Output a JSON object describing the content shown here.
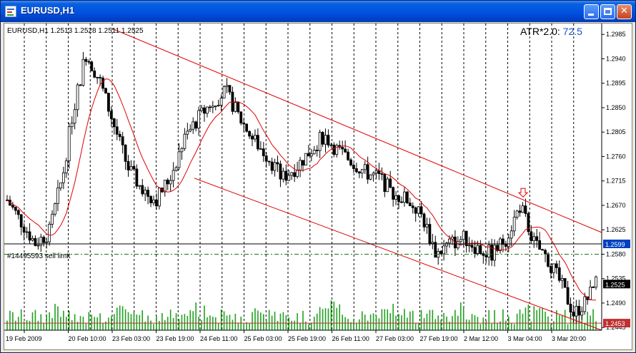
{
  "window": {
    "title": "EURUSD,H1"
  },
  "chart": {
    "header": "EURUSD,H1  1.2513 1.2528 1.2511 1.2525",
    "indicator_label": "ATR*2.0: ",
    "indicator_value": "72.5",
    "order_label": "#14495593 sell limit",
    "price_axis": [
      "1.2985",
      "1.2940",
      "1.2895",
      "1.2850",
      "1.2805",
      "1.2760",
      "1.2715",
      "1.2670",
      "1.2625",
      "1.2580",
      "1.2535",
      "1.2490",
      "1.2445"
    ],
    "time_axis": [
      "19 Feb 2009",
      "20 Feb 10:00",
      "23 Feb 03:00",
      "23 Feb 19:00",
      "24 Feb 11:00",
      "25 Feb 03:00",
      "25 Feb 19:00",
      "26 Feb 11:00",
      "27 Feb 03:00",
      "27 Feb 19:00",
      "2 Mar 12:00",
      "3 Mar 04:00",
      "3 Mar 20:00"
    ],
    "price_tags": {
      "order_line": "1.2599",
      "current_price": "1.2525",
      "low_line": "1.2453"
    },
    "colors": {
      "bull": "#000000",
      "bear": "#000000",
      "ma": "#e00000",
      "channel": "#e00000",
      "volume": "#20a020",
      "order_line": "#000000",
      "tp_line": "#207020",
      "grid": "#000000",
      "low_tag": "#c03030",
      "current_tag": "#000000",
      "order_tag": "#0040c0",
      "indicator_value": "#1a50d0"
    }
  },
  "chart_data": {
    "type": "candlestick",
    "symbol": "EURUSD",
    "timeframe": "H1",
    "ohlc_last": {
      "open": 1.2513,
      "high": 1.2528,
      "low": 1.2511,
      "close": 1.2525
    },
    "ylim": [
      1.244,
      1.3005
    ],
    "x_tick_labels": [
      "19 Feb 2009",
      "20 Feb 10:00",
      "23 Feb 03:00",
      "23 Feb 19:00",
      "24 Feb 11:00",
      "25 Feb 03:00",
      "25 Feb 19:00",
      "26 Feb 11:00",
      "27 Feb 03:00",
      "27 Feb 19:00",
      "2 Mar 12:00",
      "3 Mar 04:00",
      "3 Mar 20:00"
    ],
    "price_trend": [
      [
        0,
        1.268
      ],
      [
        10,
        1.264
      ],
      [
        20,
        1.26
      ],
      [
        30,
        1.262
      ],
      [
        40,
        1.273
      ],
      [
        46,
        1.283
      ],
      [
        56,
        1.295
      ],
      [
        66,
        1.29
      ],
      [
        76,
        1.282
      ],
      [
        86,
        1.274
      ],
      [
        96,
        1.27
      ],
      [
        106,
        1.268
      ],
      [
        116,
        1.272
      ],
      [
        126,
        1.279
      ],
      [
        136,
        1.283
      ],
      [
        146,
        1.286
      ],
      [
        156,
        1.288
      ],
      [
        166,
        1.283
      ],
      [
        176,
        1.279
      ],
      [
        186,
        1.276
      ],
      [
        196,
        1.272
      ],
      [
        206,
        1.274
      ],
      [
        216,
        1.277
      ],
      [
        226,
        1.28
      ],
      [
        236,
        1.277
      ],
      [
        246,
        1.275
      ],
      [
        256,
        1.273
      ],
      [
        266,
        1.272
      ],
      [
        276,
        1.269
      ],
      [
        286,
        1.268
      ],
      [
        296,
        1.265
      ],
      [
        306,
        1.258
      ],
      [
        316,
        1.26
      ],
      [
        326,
        1.261
      ],
      [
        336,
        1.259
      ],
      [
        346,
        1.258
      ],
      [
        356,
        1.261
      ],
      [
        366,
        1.267
      ],
      [
        376,
        1.26
      ],
      [
        386,
        1.257
      ],
      [
        396,
        1.252
      ],
      [
        404,
        1.247
      ],
      [
        412,
        1.249
      ],
      [
        420,
        1.2525
      ]
    ],
    "channel": {
      "upper": [
        [
          1.2995,
          0
        ],
        [
          1.262,
          1
        ]
      ],
      "lower": [
        [
          1.272,
          0
        ],
        [
          1.244,
          1
        ]
      ]
    },
    "order": {
      "id": "#14495593",
      "type": "sell limit",
      "price": 1.2599
    },
    "levels": {
      "take_profit": 1.258,
      "low": 1.2453,
      "current": 1.2525
    },
    "indicator": {
      "name": "ATR*2.0",
      "value": 72.5
    }
  }
}
